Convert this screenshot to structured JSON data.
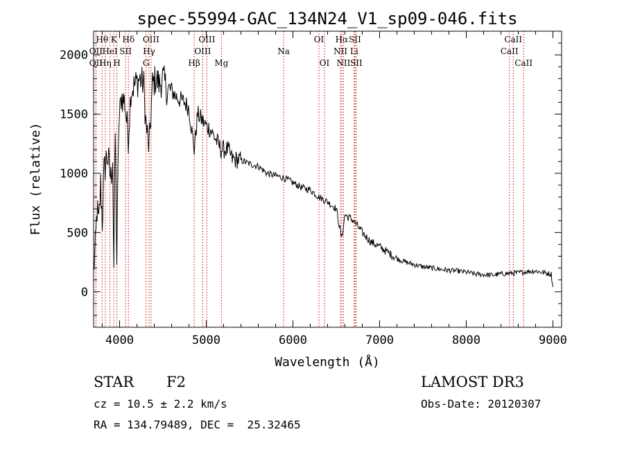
{
  "chart_data": {
    "type": "line",
    "title": "spec-55994-GAC_134N24_V1_sp09-046.fits",
    "xlabel": "Wavelength (Å)",
    "ylabel": "Flux (relative)",
    "xlim": [
      3700,
      9100
    ],
    "ylim": [
      -300,
      2200
    ],
    "x_ticks": [
      4000,
      5000,
      6000,
      7000,
      8000,
      9000
    ],
    "y_ticks": [
      0,
      500,
      1000,
      1500,
      2000
    ],
    "grid": false,
    "series": [
      {
        "name": "flux",
        "anchors": [
          [
            3700,
            200
          ],
          [
            3720,
            350
          ],
          [
            3740,
            700
          ],
          [
            3760,
            550
          ],
          [
            3780,
            900
          ],
          [
            3800,
            600
          ],
          [
            3820,
            1000
          ],
          [
            3840,
            1100
          ],
          [
            3860,
            1150
          ],
          [
            3880,
            1050
          ],
          [
            3900,
            950
          ],
          [
            3920,
            1150
          ],
          [
            3933,
            200
          ],
          [
            3950,
            1350
          ],
          [
            3968,
            250
          ],
          [
            3990,
            1400
          ],
          [
            4020,
            1650
          ],
          [
            4060,
            1600
          ],
          [
            4101,
            1300
          ],
          [
            4130,
            1700
          ],
          [
            4180,
            1750
          ],
          [
            4230,
            1800
          ],
          [
            4280,
            1750
          ],
          [
            4300,
            1450
          ],
          [
            4340,
            1200
          ],
          [
            4380,
            1750
          ],
          [
            4420,
            1800
          ],
          [
            4460,
            1750
          ],
          [
            4500,
            1800
          ],
          [
            4550,
            1700
          ],
          [
            4600,
            1700
          ],
          [
            4650,
            1650
          ],
          [
            4700,
            1620
          ],
          [
            4750,
            1600
          ],
          [
            4800,
            1550
          ],
          [
            4861,
            1200
          ],
          [
            4900,
            1500
          ],
          [
            4950,
            1450
          ],
          [
            5000,
            1400
          ],
          [
            5050,
            1370
          ],
          [
            5100,
            1300
          ],
          [
            5170,
            1200
          ],
          [
            5250,
            1200
          ],
          [
            5300,
            1120
          ],
          [
            5400,
            1110
          ],
          [
            5500,
            1080
          ],
          [
            5600,
            1060
          ],
          [
            5700,
            1000
          ],
          [
            5800,
            980
          ],
          [
            5900,
            960
          ],
          [
            6000,
            920
          ],
          [
            6100,
            880
          ],
          [
            6200,
            860
          ],
          [
            6300,
            800
          ],
          [
            6400,
            760
          ],
          [
            6500,
            700
          ],
          [
            6563,
            450
          ],
          [
            6600,
            650
          ],
          [
            6700,
            600
          ],
          [
            6800,
            500
          ],
          [
            6900,
            420
          ],
          [
            7000,
            380
          ],
          [
            7100,
            330
          ],
          [
            7200,
            280
          ],
          [
            7300,
            250
          ],
          [
            7400,
            230
          ],
          [
            7500,
            210
          ],
          [
            7600,
            200
          ],
          [
            7700,
            190
          ],
          [
            7800,
            180
          ],
          [
            7900,
            175
          ],
          [
            8000,
            165
          ],
          [
            8100,
            150
          ],
          [
            8200,
            145
          ],
          [
            8300,
            140
          ],
          [
            8400,
            150
          ],
          [
            8500,
            155
          ],
          [
            8600,
            160
          ],
          [
            8700,
            170
          ],
          [
            8800,
            175
          ],
          [
            8900,
            160
          ],
          [
            8980,
            150
          ],
          [
            9000,
            40
          ]
        ]
      }
    ],
    "lines": [
      {
        "label": "Hθ",
        "wave": 3798,
        "row": 1
      },
      {
        "label": "OII",
        "wave": 3727,
        "row": 2
      },
      {
        "label": "OII",
        "wave": 3727,
        "row": 3
      },
      {
        "label": "Hη",
        "wave": 3835,
        "row": 3
      },
      {
        "label": "HeI",
        "wave": 3889,
        "row": 2
      },
      {
        "label": "K",
        "wave": 3934,
        "row": 1
      },
      {
        "label": "SII",
        "wave": 4069,
        "row": 2
      },
      {
        "label": "H",
        "wave": 3969,
        "row": 3
      },
      {
        "label": "Hδ",
        "wave": 4102,
        "row": 1
      },
      {
        "label": "OIII",
        "wave": 4363,
        "row": 1
      },
      {
        "label": "Hγ",
        "wave": 4340,
        "row": 2
      },
      {
        "label": "G",
        "wave": 4305,
        "row": 3
      },
      {
        "label": "Hβ",
        "wave": 4861,
        "row": 3
      },
      {
        "label": "OIII",
        "wave": 5007,
        "row": 1
      },
      {
        "label": "OIII",
        "wave": 4959,
        "row": 2
      },
      {
        "label": "Mg",
        "wave": 5175,
        "row": 3
      },
      {
        "label": "Na",
        "wave": 5893,
        "row": 2
      },
      {
        "label": "OI",
        "wave": 6300,
        "row": 1
      },
      {
        "label": "OI",
        "wave": 6364,
        "row": 3
      },
      {
        "label": "Hα",
        "wave": 6563,
        "row": 1
      },
      {
        "label": "NII",
        "wave": 6548,
        "row": 2
      },
      {
        "label": "NII",
        "wave": 6583,
        "row": 3
      },
      {
        "label": "SII",
        "wave": 6716,
        "row": 1
      },
      {
        "label": "Li",
        "wave": 6707,
        "row": 2
      },
      {
        "label": "SII",
        "wave": 6731,
        "row": 3
      },
      {
        "label": "CaII",
        "wave": 8542,
        "row": 1
      },
      {
        "label": "CaII",
        "wave": 8498,
        "row": 2
      },
      {
        "label": "CaII",
        "wave": 8662,
        "row": 3
      }
    ]
  },
  "info": {
    "object_class": "STAR",
    "subclass": "F2",
    "survey": "LAMOST DR3",
    "redshift": "cz = 10.5 ± 2.2 km/s",
    "obs_date": "Obs-Date: 20120307",
    "coords": "RA = 134.79489, DEC =  25.32465"
  },
  "colors": {
    "line": "#000000",
    "marker": "#cc0000"
  }
}
